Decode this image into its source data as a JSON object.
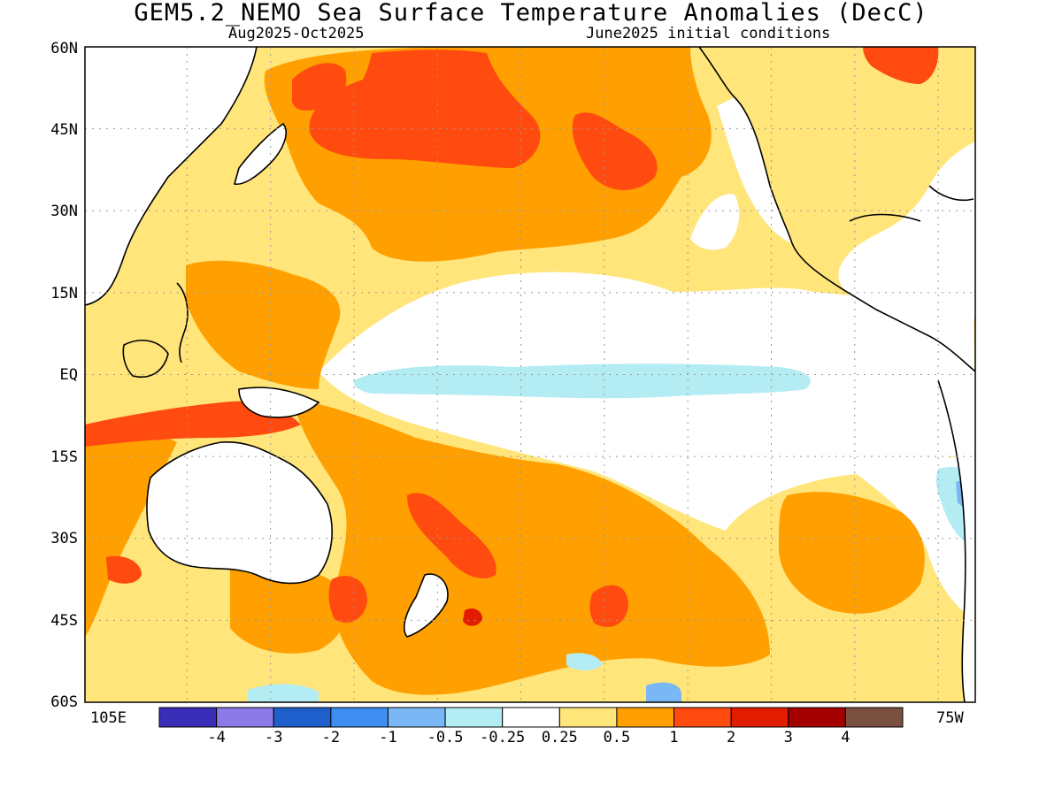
{
  "title": "GEM5.2_NEMO Sea Surface Temperature Anomalies (DecC)",
  "subtitle_left": "Aug2025-Oct2025",
  "subtitle_right": "June2025 initial conditions",
  "lat_labels": [
    "60N",
    "45N",
    "30N",
    "15N",
    "EQ",
    "15S",
    "30S",
    "45S",
    "60S"
  ],
  "lon_labels": {
    "west": "105E",
    "east": "75W"
  },
  "colorbar": {
    "colors": [
      "#3a2eb8",
      "#8c7ae8",
      "#1e5fcc",
      "#3d8ef0",
      "#79b8f5",
      "#b4ecf4",
      "#ffffff",
      "#ffe57a",
      "#ff9f00",
      "#ff4a10",
      "#e11c00",
      "#a50000",
      "#7a5040"
    ],
    "labels": [
      "-4",
      "-3",
      "-2",
      "-1",
      "-0.5",
      "-0.25",
      "0.25",
      "0.5",
      "1",
      "2",
      "3",
      "4"
    ]
  },
  "palette": {
    "land": "#ffffff",
    "neutral": "#ffffff",
    "weak_warm": "#ffe57a",
    "warm": "#ff9f00",
    "strong_warm": "#ff4a10",
    "very_strong_warm": "#e11c00",
    "weak_cool": "#b4ecf4",
    "cool": "#79b8f5"
  }
}
